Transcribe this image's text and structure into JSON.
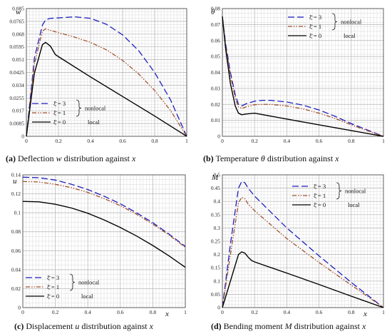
{
  "chart_data": [
    {
      "type": "line",
      "panel_label": "(a)",
      "caption": "Deflection",
      "caption_var": "w",
      "caption_rest": "distribution against",
      "caption_axis": "x",
      "ylabel": "w",
      "xlabel": "",
      "xlim": [
        0,
        1
      ],
      "ylim": [
        0,
        0.085
      ],
      "xticks": [
        "0",
        "0.2",
        "0.4",
        "0.6",
        "0.8",
        "1"
      ],
      "yticks": [
        "0",
        "0.0085",
        "0.017",
        "0.0255",
        "0.034",
        "0.0425",
        "0.051",
        "0.0595",
        "0.068",
        "0.0765",
        "0.085"
      ],
      "grid": true,
      "legend_position": "lower-left",
      "group_label_nonlocal": "nonlocal",
      "group_label_local": "local",
      "series": [
        {
          "name": "ξ̄ = 3",
          "color": "#1f1fbf",
          "dash": "9,4",
          "x": [
            0,
            0.05,
            0.1,
            0.12,
            0.15,
            0.2,
            0.3,
            0.4,
            0.5,
            0.6,
            0.7,
            0.8,
            0.9,
            1
          ],
          "y": [
            0,
            0.052,
            0.074,
            0.0775,
            0.0785,
            0.0788,
            0.0795,
            0.0785,
            0.0745,
            0.0675,
            0.057,
            0.0425,
            0.024,
            0
          ]
        },
        {
          "name": "ξ̄ = 1",
          "color": "#a0522d",
          "dash": "6,2,1.5,2,1.5,2",
          "x": [
            0,
            0.05,
            0.1,
            0.12,
            0.15,
            0.2,
            0.3,
            0.4,
            0.5,
            0.6,
            0.7,
            0.8,
            0.9,
            1
          ],
          "y": [
            0,
            0.048,
            0.07,
            0.0715,
            0.0705,
            0.069,
            0.066,
            0.0625,
            0.0575,
            0.0505,
            0.0415,
            0.0305,
            0.017,
            0
          ]
        },
        {
          "name": "ξ̄ = 0",
          "color": "#000000",
          "dash": "",
          "x": [
            0,
            0.05,
            0.1,
            0.12,
            0.15,
            0.18,
            0.2,
            0.4,
            0.6,
            0.8,
            1
          ],
          "y": [
            0,
            0.042,
            0.061,
            0.0625,
            0.06,
            0.0545,
            0.053,
            0.0395,
            0.0265,
            0.0135,
            0
          ]
        }
      ]
    },
    {
      "type": "line",
      "panel_label": "(b)",
      "caption": "Temperature",
      "caption_var": "θ",
      "caption_rest": "distribution against",
      "caption_axis": "x",
      "ylabel": "θ",
      "xlabel": "",
      "xlim": [
        0,
        1
      ],
      "ylim": [
        0,
        0.08
      ],
      "xticks": [
        "0",
        "0.2",
        "0.4",
        "0.6",
        "0.8",
        "1"
      ],
      "yticks": [
        "0",
        "0.01",
        "0.02",
        "0.03",
        "0.04",
        "0.05",
        "0.06",
        "0.07",
        "0.08"
      ],
      "grid": true,
      "legend_position": "top-right",
      "group_label_nonlocal": "nonlocal",
      "group_label_local": "local",
      "series": [
        {
          "name": "ξ̄ = 3",
          "color": "#1f1fbf",
          "dash": "9,4",
          "x": [
            0,
            0.02,
            0.05,
            0.08,
            0.1,
            0.12,
            0.15,
            0.2,
            0.25,
            0.3,
            0.4,
            0.5,
            0.6,
            0.7,
            0.8,
            0.9,
            1
          ],
          "y": [
            0.075,
            0.058,
            0.04,
            0.026,
            0.02,
            0.019,
            0.0205,
            0.022,
            0.0225,
            0.0225,
            0.0215,
            0.0195,
            0.0165,
            0.0125,
            0.008,
            0.004,
            0
          ]
        },
        {
          "name": "ξ̄ = 1",
          "color": "#a0522d",
          "dash": "6,2,1.5,2,1.5,2",
          "x": [
            0,
            0.02,
            0.05,
            0.08,
            0.1,
            0.12,
            0.15,
            0.2,
            0.25,
            0.3,
            0.4,
            0.5,
            0.6,
            0.7,
            0.8,
            0.9,
            1
          ],
          "y": [
            0.075,
            0.057,
            0.038,
            0.024,
            0.0185,
            0.0175,
            0.0185,
            0.0198,
            0.02,
            0.02,
            0.019,
            0.0172,
            0.0145,
            0.0112,
            0.0072,
            0.0035,
            0
          ]
        },
        {
          "name": "ξ̄ = 0",
          "color": "#000000",
          "dash": "",
          "x": [
            0,
            0.02,
            0.05,
            0.08,
            0.1,
            0.12,
            0.15,
            0.2,
            0.4,
            0.6,
            0.8,
            1
          ],
          "y": [
            0.075,
            0.055,
            0.033,
            0.019,
            0.0145,
            0.0135,
            0.014,
            0.0145,
            0.0108,
            0.0072,
            0.0036,
            0
          ]
        }
      ]
    },
    {
      "type": "line",
      "panel_label": "(c)",
      "caption": "Displacement",
      "caption_var": "u",
      "caption_rest": "distribution against",
      "caption_axis": "x",
      "ylabel": "u",
      "xlabel": "x",
      "xlim": [
        0,
        1
      ],
      "ylim": [
        0,
        0.14
      ],
      "xticks": [
        "0",
        "0.2",
        "0.4",
        "0.6",
        "0.8",
        "1"
      ],
      "yticks": [
        "0",
        "0.02",
        "0.04",
        "0.06",
        "0.08",
        "0.1",
        "0.12",
        "0.14"
      ],
      "grid": true,
      "legend_position": "lower-left",
      "group_label_nonlocal": "nonlocal",
      "group_label_local": "local",
      "series": [
        {
          "name": "ξ̄ = 3",
          "color": "#1f1fbf",
          "dash": "9,4",
          "x": [
            0,
            0.1,
            0.2,
            0.3,
            0.4,
            0.5,
            0.6,
            0.7,
            0.8,
            0.9,
            1
          ],
          "y": [
            0.1375,
            0.137,
            0.1345,
            0.13,
            0.1245,
            0.1175,
            0.1095,
            0.1,
            0.0895,
            0.0775,
            0.0645
          ]
        },
        {
          "name": "ξ̄ = 1",
          "color": "#a0522d",
          "dash": "6,2,1.5,2,1.5,2",
          "x": [
            0,
            0.1,
            0.2,
            0.3,
            0.4,
            0.5,
            0.6,
            0.7,
            0.8,
            0.9,
            1
          ],
          "y": [
            0.133,
            0.1325,
            0.13,
            0.1265,
            0.1215,
            0.115,
            0.1075,
            0.0985,
            0.088,
            0.0765,
            0.0635
          ]
        },
        {
          "name": "ξ̄ = 0",
          "color": "#000000",
          "dash": "",
          "x": [
            0,
            0.1,
            0.2,
            0.3,
            0.4,
            0.5,
            0.6,
            0.7,
            0.8,
            0.9,
            1
          ],
          "y": [
            0.112,
            0.1115,
            0.109,
            0.105,
            0.0995,
            0.0925,
            0.0845,
            0.0755,
            0.0655,
            0.0545,
            0.0425
          ]
        }
      ]
    },
    {
      "type": "line",
      "panel_label": "(d)",
      "caption": "Bending moment",
      "caption_var": "M",
      "caption_rest": "distribution against",
      "caption_axis": "x",
      "ylabel": "M",
      "xlabel": "x",
      "xlim": [
        0,
        1
      ],
      "ylim": [
        0,
        0.5
      ],
      "xticks": [
        "0",
        "0.2",
        "0.4",
        "0.6",
        "0.8",
        "1"
      ],
      "yticks": [
        "0",
        "0.05",
        "0.1",
        "0.15",
        "0.2",
        "0.25",
        "0.3",
        "0.35",
        "0.4",
        "0.45",
        "0.5"
      ],
      "grid": true,
      "legend_position": "top-right",
      "group_label_nonlocal": "nonlocal",
      "group_label_local": "local",
      "series": [
        {
          "name": "ξ̄ = 3",
          "color": "#1f1fbf",
          "dash": "9,4",
          "x": [
            0,
            0.05,
            0.1,
            0.12,
            0.14,
            0.16,
            0.2,
            0.4,
            0.6,
            0.8,
            1
          ],
          "y": [
            0,
            0.24,
            0.45,
            0.475,
            0.47,
            0.45,
            0.42,
            0.3,
            0.195,
            0.095,
            0
          ]
        },
        {
          "name": "ξ̄ = 1",
          "color": "#a0522d",
          "dash": "6,2,1.5,2,1.5,2",
          "x": [
            0,
            0.05,
            0.1,
            0.12,
            0.14,
            0.16,
            0.2,
            0.4,
            0.6,
            0.8,
            1
          ],
          "y": [
            0,
            0.2,
            0.395,
            0.415,
            0.41,
            0.39,
            0.365,
            0.26,
            0.17,
            0.085,
            0
          ]
        },
        {
          "name": "ξ̄ = 0",
          "color": "#000000",
          "dash": "",
          "x": [
            0,
            0.05,
            0.1,
            0.12,
            0.14,
            0.16,
            0.18,
            0.2,
            0.4,
            0.6,
            0.8,
            1
          ],
          "y": [
            0,
            0.1,
            0.2,
            0.21,
            0.205,
            0.19,
            0.178,
            0.172,
            0.13,
            0.087,
            0.043,
            0
          ]
        }
      ]
    }
  ]
}
